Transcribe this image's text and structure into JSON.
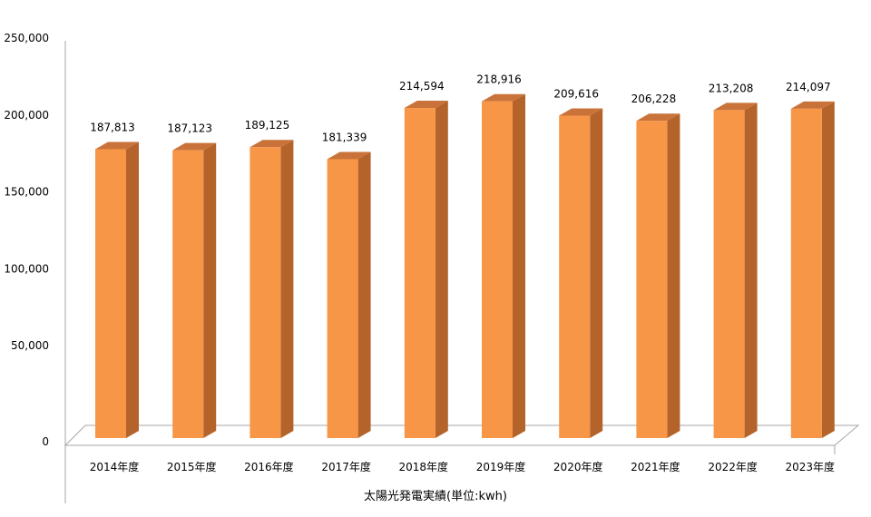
{
  "chart_data": {
    "type": "bar",
    "title": "",
    "xlabel": "太陽光発電実績(単位:kwh)",
    "ylabel": "",
    "ylim": [
      0,
      250000
    ],
    "yticks": [
      "0",
      "50,000",
      "100,000",
      "150,000",
      "200,000",
      "250,000"
    ],
    "categories": [
      "2014年度",
      "2015年度",
      "2016年度",
      "2017年度",
      "2018年度",
      "2019年度",
      "2020年度",
      "2021年度",
      "2022年度",
      "2023年度"
    ],
    "values": [
      187813,
      187123,
      189125,
      181339,
      214594,
      218916,
      209616,
      206228,
      213208,
      214097
    ],
    "value_labels": [
      "187,813",
      "187,123",
      "189,125",
      "181,339",
      "214,594",
      "218,916",
      "209,616",
      "206,228",
      "213,208",
      "214,097"
    ],
    "grid": false,
    "legend": "none",
    "colors": {
      "bar_front": "#f79646",
      "bar_side": "#b4632a",
      "bar_top": "#c9733a",
      "floor": "#ffffff",
      "axis": "#a6a6a6"
    }
  }
}
